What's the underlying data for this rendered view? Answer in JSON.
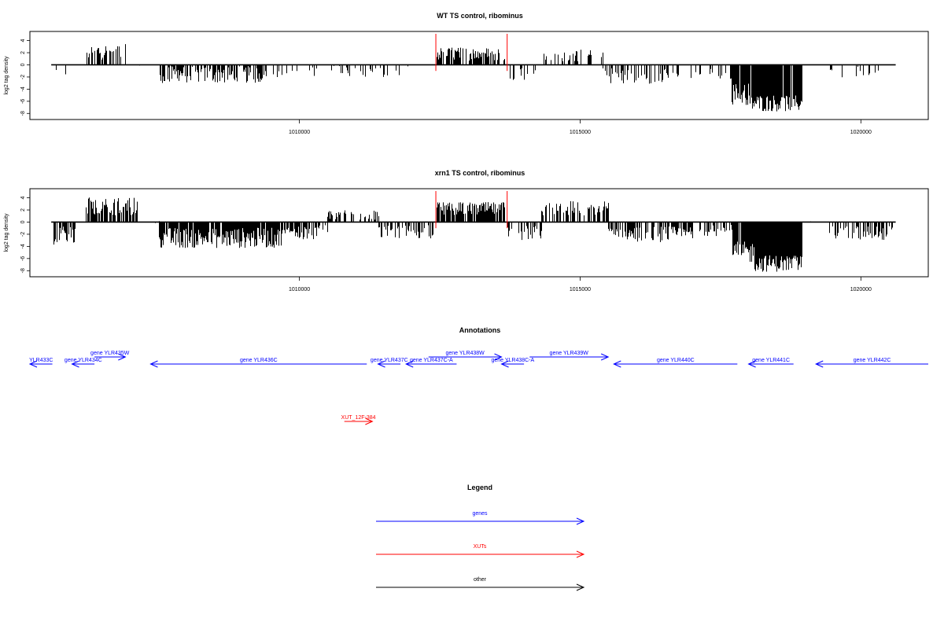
{
  "colors": {
    "genes": "#0000ff",
    "xuts": "#ff0000",
    "other": "#000000",
    "bars": "#000000"
  },
  "x_axis": {
    "range": [
      1005200,
      1021200
    ],
    "ticks": [
      1010000,
      1015000,
      1020000
    ],
    "tick_labels": [
      "1010000",
      "1015000",
      "1020000"
    ]
  },
  "chart_data": [
    {
      "type": "bar",
      "title": "WT TS control, ribominus",
      "xlabel": "",
      "ylabel": "log2 tag density",
      "ylim": [
        -9,
        5.5
      ],
      "yticks": [
        4,
        2,
        0,
        -2,
        -4,
        -6,
        -8
      ],
      "ytick_labels": [
        "4",
        "2",
        "0",
        "-2",
        "-4",
        "-6",
        "-8"
      ],
      "baseline_range": [
        1005580,
        1020620
      ],
      "markers": [
        1012430,
        1013700
      ],
      "segments": [
        {
          "start": 1005580,
          "end": 1005700,
          "mean": -2.0,
          "amp": 1.5,
          "density": 0.25
        },
        {
          "start": 1005700,
          "end": 1005900,
          "mean": -1.5,
          "amp": 1.0,
          "density": 0.15
        },
        {
          "start": 1006200,
          "end": 1006900,
          "mean": 2.2,
          "amp": 1.4,
          "density": 0.5
        },
        {
          "start": 1006900,
          "end": 1007500,
          "mean": 0,
          "amp": 0.2,
          "density": 0.02
        },
        {
          "start": 1007500,
          "end": 1009400,
          "mean": -1.6,
          "amp": 1.4,
          "density": 0.7
        },
        {
          "start": 1009400,
          "end": 1011000,
          "mean": -1.1,
          "amp": 1.0,
          "density": 0.15
        },
        {
          "start": 1011000,
          "end": 1011800,
          "mean": -1.3,
          "amp": 1.0,
          "density": 0.25
        },
        {
          "start": 1011800,
          "end": 1012400,
          "mean": -0.8,
          "amp": 0.6,
          "density": 0.05
        },
        {
          "start": 1012450,
          "end": 1013650,
          "mean": 1.8,
          "amp": 1.1,
          "density": 0.6
        },
        {
          "start": 1013750,
          "end": 1014300,
          "mean": -1.3,
          "amp": 1.2,
          "density": 0.2
        },
        {
          "start": 1014300,
          "end": 1015400,
          "mean": 1.5,
          "amp": 1.0,
          "density": 0.3
        },
        {
          "start": 1015400,
          "end": 1016500,
          "mean": -1.8,
          "amp": 1.3,
          "density": 0.5
        },
        {
          "start": 1016500,
          "end": 1017700,
          "mean": -1.4,
          "amp": 1.0,
          "density": 0.25
        },
        {
          "start": 1017700,
          "end": 1018050,
          "mean": -4.8,
          "amp": 1.8,
          "density": 0.9
        },
        {
          "start": 1018050,
          "end": 1018950,
          "mean": -6.3,
          "amp": 1.4,
          "density": 0.98
        },
        {
          "start": 1018950,
          "end": 1019400,
          "mean": 0,
          "amp": 0.2,
          "density": 0.02
        },
        {
          "start": 1019400,
          "end": 1020620,
          "mean": -1.3,
          "amp": 1.0,
          "density": 0.25
        }
      ]
    },
    {
      "type": "bar",
      "title": "xrn1 TS control, ribominus",
      "xlabel": "",
      "ylabel": "log2 tag density",
      "ylim": [
        -9,
        5.5
      ],
      "yticks": [
        4,
        2,
        0,
        -2,
        -4,
        -6,
        -8
      ],
      "ytick_labels": [
        "4",
        "2",
        "0",
        "-2",
        "-4",
        "-6",
        "-8"
      ],
      "baseline_range": [
        1005580,
        1020620
      ],
      "markers": [
        1012430,
        1013700
      ],
      "segments": [
        {
          "start": 1005580,
          "end": 1006000,
          "mean": -2.2,
          "amp": 1.5,
          "density": 0.5
        },
        {
          "start": 1006200,
          "end": 1007100,
          "mean": 2.6,
          "amp": 1.5,
          "density": 0.8
        },
        {
          "start": 1007100,
          "end": 1007500,
          "mean": 0,
          "amp": 0.2,
          "density": 0.02
        },
        {
          "start": 1007500,
          "end": 1009700,
          "mean": -2.6,
          "amp": 1.7,
          "density": 0.9
        },
        {
          "start": 1009700,
          "end": 1010500,
          "mean": -1.8,
          "amp": 1.3,
          "density": 0.6
        },
        {
          "start": 1010500,
          "end": 1011400,
          "mean": 1.3,
          "amp": 0.9,
          "density": 0.45
        },
        {
          "start": 1011400,
          "end": 1012400,
          "mean": -1.6,
          "amp": 1.1,
          "density": 0.5
        },
        {
          "start": 1012450,
          "end": 1013650,
          "mean": 2.2,
          "amp": 1.1,
          "density": 0.85
        },
        {
          "start": 1013700,
          "end": 1014300,
          "mean": -1.8,
          "amp": 1.2,
          "density": 0.5
        },
        {
          "start": 1014300,
          "end": 1015500,
          "mean": 2.2,
          "amp": 1.3,
          "density": 0.55
        },
        {
          "start": 1015500,
          "end": 1017000,
          "mean": -2.0,
          "amp": 1.3,
          "density": 0.7
        },
        {
          "start": 1017000,
          "end": 1017700,
          "mean": -1.4,
          "amp": 1.0,
          "density": 0.3
        },
        {
          "start": 1017700,
          "end": 1018100,
          "mean": -5.0,
          "amp": 1.8,
          "density": 0.9
        },
        {
          "start": 1018100,
          "end": 1018950,
          "mean": -6.8,
          "amp": 1.4,
          "density": 0.98
        },
        {
          "start": 1018950,
          "end": 1019400,
          "mean": 0,
          "amp": 0.2,
          "density": 0.02
        },
        {
          "start": 1019400,
          "end": 1020620,
          "mean": -1.8,
          "amp": 1.2,
          "density": 0.5
        }
      ]
    }
  ],
  "annotations": {
    "title": "Annotations",
    "features": [
      {
        "label": "YLR433C",
        "start": 1005000,
        "end": 1005600,
        "strand": "-",
        "row": 0,
        "color": "#0000ff"
      },
      {
        "label": "gene YLR434C",
        "start": 1005950,
        "end": 1006350,
        "strand": "-",
        "row": 0,
        "color": "#0000ff"
      },
      {
        "label": "gene YLR435W",
        "start": 1006350,
        "end": 1006900,
        "strand": "+",
        "row": 1,
        "color": "#0000ff"
      },
      {
        "label": "gene YLR436C",
        "start": 1007350,
        "end": 1011200,
        "strand": "-",
        "row": 0,
        "color": "#0000ff"
      },
      {
        "label": "gene YLR437C",
        "start": 1011400,
        "end": 1011800,
        "strand": "-",
        "row": 0,
        "color": "#0000ff"
      },
      {
        "label": "gene YLR437C-A",
        "start": 1011900,
        "end": 1012800,
        "strand": "-",
        "row": 0,
        "color": "#0000ff"
      },
      {
        "label": "gene YLR438W",
        "start": 1012300,
        "end": 1013600,
        "strand": "+",
        "row": 1,
        "color": "#0000ff"
      },
      {
        "label": "gene YLR438C-A",
        "start": 1013600,
        "end": 1014000,
        "strand": "-",
        "row": 0,
        "color": "#0000ff"
      },
      {
        "label": "gene YLR439W",
        "start": 1014100,
        "end": 1015500,
        "strand": "+",
        "row": 1,
        "color": "#0000ff"
      },
      {
        "label": "gene YLR440C",
        "start": 1015600,
        "end": 1017800,
        "strand": "-",
        "row": 0,
        "color": "#0000ff"
      },
      {
        "label": "gene YLR441C",
        "start": 1018000,
        "end": 1018800,
        "strand": "-",
        "row": 0,
        "color": "#0000ff"
      },
      {
        "label": "gene YLR442C",
        "start": 1019200,
        "end": 1021400,
        "strand": "-",
        "row": 0,
        "color": "#0000ff"
      },
      {
        "label": "XUT_12F-384",
        "start": 1010800,
        "end": 1011300,
        "strand": "+",
        "row": 2,
        "color": "#ff0000"
      }
    ]
  },
  "legend": {
    "title": "Legend",
    "items": [
      {
        "label": "genes",
        "color": "#0000ff"
      },
      {
        "label": "XUTs",
        "color": "#ff0000"
      },
      {
        "label": "other",
        "color": "#000000"
      }
    ]
  }
}
